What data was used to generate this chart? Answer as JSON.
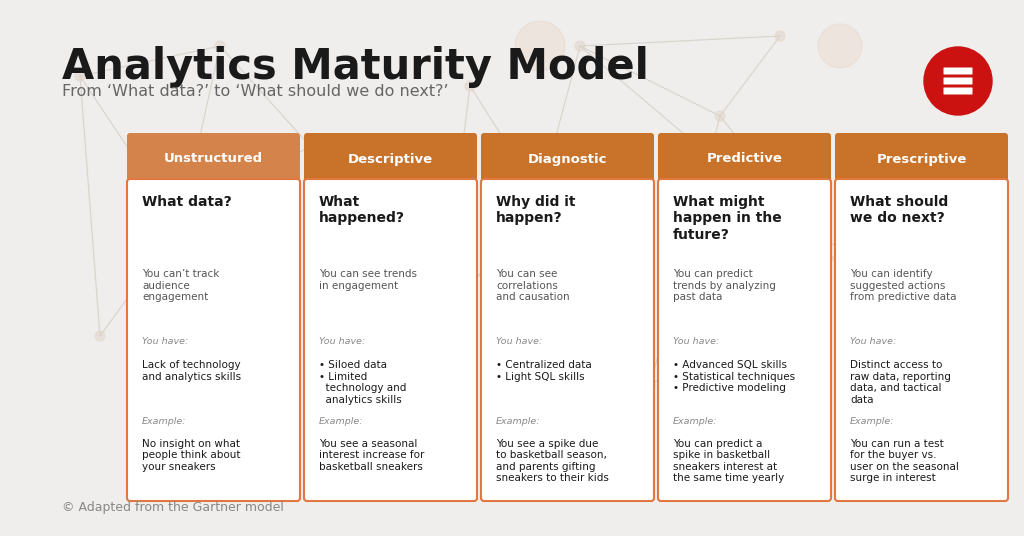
{
  "title": "Analytics Maturity Model",
  "subtitle": "From ‘What data?’ to ‘What should we do next?’",
  "footer": "© Adapted from the Gartner model",
  "background_color": "#f0eeec",
  "card_border_color": "#e07840",
  "card_bg": "#ffffff",
  "title_color": "#1a1a1a",
  "subtitle_color": "#666666",
  "footer_color": "#888888",
  "phases": [
    {
      "header": "Unstructured",
      "header_color": "#d4844a",
      "question": "What data?",
      "you_can": "You can’t track\naudience\nengagement",
      "you_have_label": "You have:",
      "you_have": "Lack of technology\nand analytics skills",
      "example_label": "Example:",
      "example": "No insight on what\npeople think about\nyour sneakers"
    },
    {
      "header": "Descriptive",
      "header_color": "#c8722a",
      "question": "What\nhappened?",
      "you_can": "You can see trends\nin engagement",
      "you_have_label": "You have:",
      "you_have": "• Siloed data\n• Limited\n  technology and\n  analytics skills",
      "example_label": "Example:",
      "example": "You see a seasonal\ninterest increase for\nbasketball sneakers"
    },
    {
      "header": "Diagnostic",
      "header_color": "#c8722a",
      "question": "Why did it\nhappen?",
      "you_can": "You can see\ncorrelations\nand causation",
      "you_have_label": "You have:",
      "you_have": "• Centralized data\n• Light SQL skills",
      "example_label": "Example:",
      "example": "You see a spike due\nto basketball season,\nand parents gifting\nsneakers to their kids"
    },
    {
      "header": "Predictive",
      "header_color": "#c8722a",
      "question": "What might\nhappen in the\nfuture?",
      "you_can": "You can predict\ntrends by analyzing\npast data",
      "you_have_label": "You have:",
      "you_have": "• Advanced SQL skills\n• Statistical techniques\n• Predictive modeling",
      "example_label": "Example:",
      "example": "You can predict a\nspike in basketball\nsneakers interest at\nthe same time yearly"
    },
    {
      "header": "Prescriptive",
      "header_color": "#c8722a",
      "question": "What should\nwe do next?",
      "you_can": "You can identify\nsuggested actions\nfrom predictive data",
      "you_have_label": "You have:",
      "you_have": "Distinct access to\nraw data, reporting\ndata, and tactical\ndata",
      "example_label": "Example:",
      "example": "You can run a test\nfor the buyer vs.\nuser on the seasonal\nsurge in interest"
    }
  ]
}
